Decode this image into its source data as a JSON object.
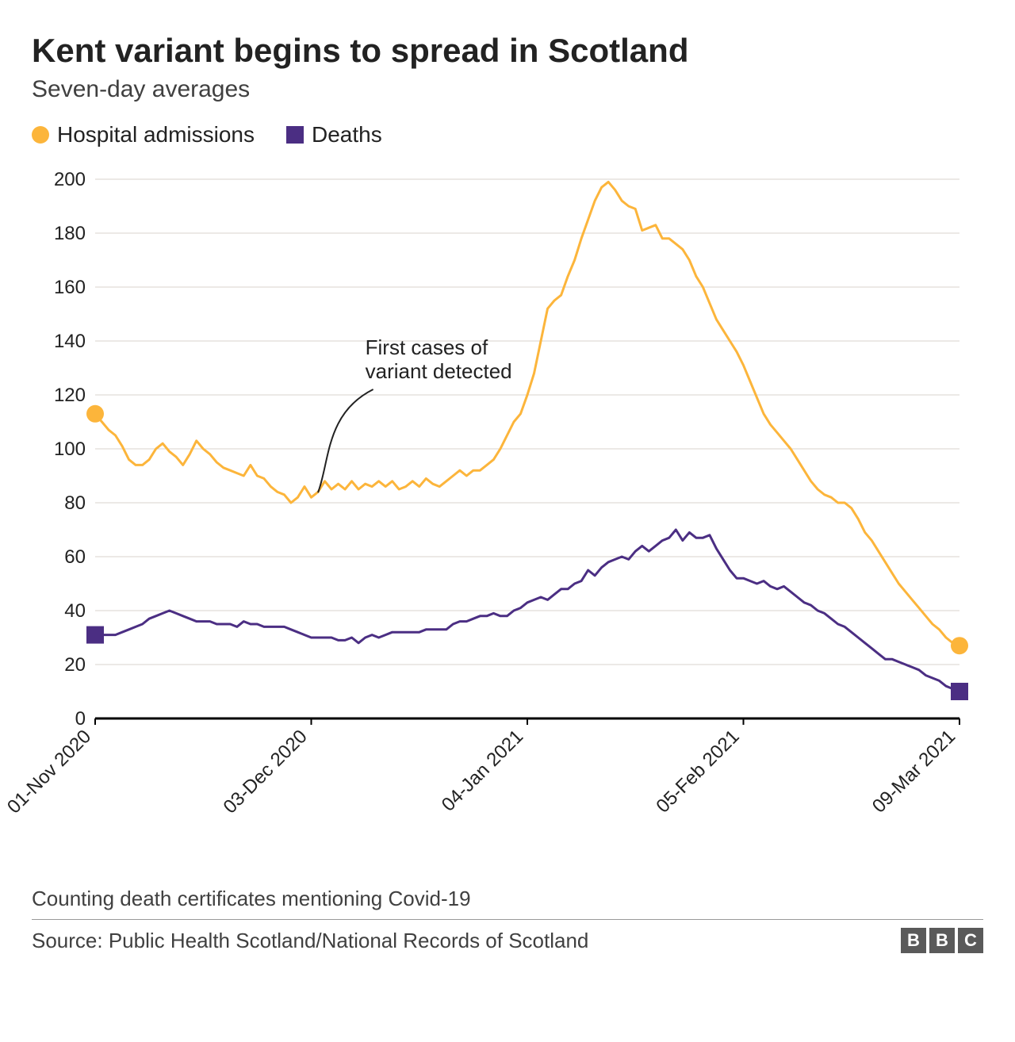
{
  "title": "Kent variant begins to spread in Scotland",
  "subtitle": "Seven-day averages",
  "legend": {
    "series1_label": "Hospital admissions",
    "series2_label": "Deaths"
  },
  "colors": {
    "series1": "#fcb53b",
    "series2": "#4b2e83",
    "grid": "#d8d3cd",
    "axis": "#000000",
    "background": "#ffffff",
    "annotation_line": "#222222"
  },
  "chart": {
    "type": "line",
    "ylim": [
      0,
      200
    ],
    "ytick_step": 20,
    "yticks": [
      0,
      20,
      40,
      60,
      80,
      100,
      120,
      140,
      160,
      180,
      200
    ],
    "x_index_range": [
      0,
      128
    ],
    "xticks": [
      {
        "idx": 0,
        "label": "01-Nov 2020"
      },
      {
        "idx": 32,
        "label": "03-Dec 2020"
      },
      {
        "idx": 64,
        "label": "04-Jan 2021"
      },
      {
        "idx": 96,
        "label": "05-Feb 2021"
      },
      {
        "idx": 128,
        "label": "09-Mar 2021"
      }
    ],
    "line_width": 3,
    "marker_size": 11,
    "series1_marker": "circle",
    "series2_marker": "square",
    "series1_values": [
      113,
      110,
      107,
      105,
      101,
      96,
      94,
      94,
      96,
      100,
      102,
      99,
      97,
      94,
      98,
      103,
      100,
      98,
      95,
      93,
      92,
      91,
      90,
      94,
      90,
      89,
      86,
      84,
      83,
      80,
      82,
      86,
      82,
      84,
      88,
      85,
      87,
      85,
      88,
      85,
      87,
      86,
      88,
      86,
      88,
      85,
      86,
      88,
      86,
      89,
      87,
      86,
      88,
      90,
      92,
      90,
      92,
      92,
      94,
      96,
      100,
      105,
      110,
      113,
      120,
      128,
      140,
      152,
      155,
      157,
      164,
      170,
      178,
      185,
      192,
      197,
      199,
      196,
      192,
      190,
      189,
      181,
      182,
      183,
      178,
      178,
      176,
      174,
      170,
      164,
      160,
      154,
      148,
      144,
      140,
      136,
      131,
      125,
      119,
      113,
      109,
      106,
      103,
      100,
      96,
      92,
      88,
      85,
      83,
      82,
      80,
      80,
      78,
      74,
      69,
      66,
      62,
      58,
      54,
      50,
      47,
      44,
      41,
      38,
      35,
      33,
      30,
      28,
      27
    ],
    "series2_values": [
      31,
      31,
      31,
      31,
      32,
      33,
      34,
      35,
      37,
      38,
      39,
      40,
      39,
      38,
      37,
      36,
      36,
      36,
      35,
      35,
      35,
      34,
      36,
      35,
      35,
      34,
      34,
      34,
      34,
      33,
      32,
      31,
      30,
      30,
      30,
      30,
      29,
      29,
      30,
      28,
      30,
      31,
      30,
      31,
      32,
      32,
      32,
      32,
      32,
      33,
      33,
      33,
      33,
      35,
      36,
      36,
      37,
      38,
      38,
      39,
      38,
      38,
      40,
      41,
      43,
      44,
      45,
      44,
      46,
      48,
      48,
      50,
      51,
      55,
      53,
      56,
      58,
      59,
      60,
      59,
      62,
      64,
      62,
      64,
      66,
      67,
      70,
      66,
      69,
      67,
      67,
      68,
      63,
      59,
      55,
      52,
      52,
      51,
      50,
      51,
      49,
      48,
      49,
      47,
      45,
      43,
      42,
      40,
      39,
      37,
      35,
      34,
      32,
      30,
      28,
      26,
      24,
      22,
      22,
      21,
      20,
      19,
      18,
      16,
      15,
      14,
      12,
      11,
      10
    ],
    "annotation": {
      "line1": "First cases of",
      "line2": "variant detected",
      "target_idx": 33,
      "target_value": 82,
      "label_x_idx": 40,
      "label_y_value": 135
    }
  },
  "footnote": "Counting death certificates mentioning Covid-19",
  "source": "Source: Public Health Scotland/National Records of Scotland",
  "brand": "BBC"
}
